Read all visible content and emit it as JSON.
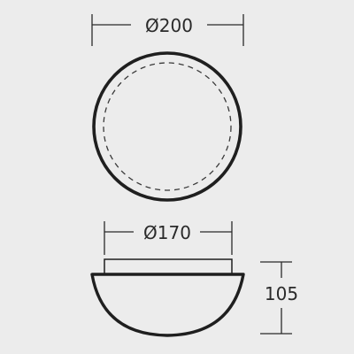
{
  "drawing": {
    "top_view": {
      "outer_diameter_label": "Ø200"
    },
    "side_view": {
      "base_diameter_label": "Ø170",
      "height_label": "105"
    },
    "colors": {
      "background": "#ececec",
      "outline": "#1f1f1f",
      "dimension": "#2a2a2a"
    }
  }
}
